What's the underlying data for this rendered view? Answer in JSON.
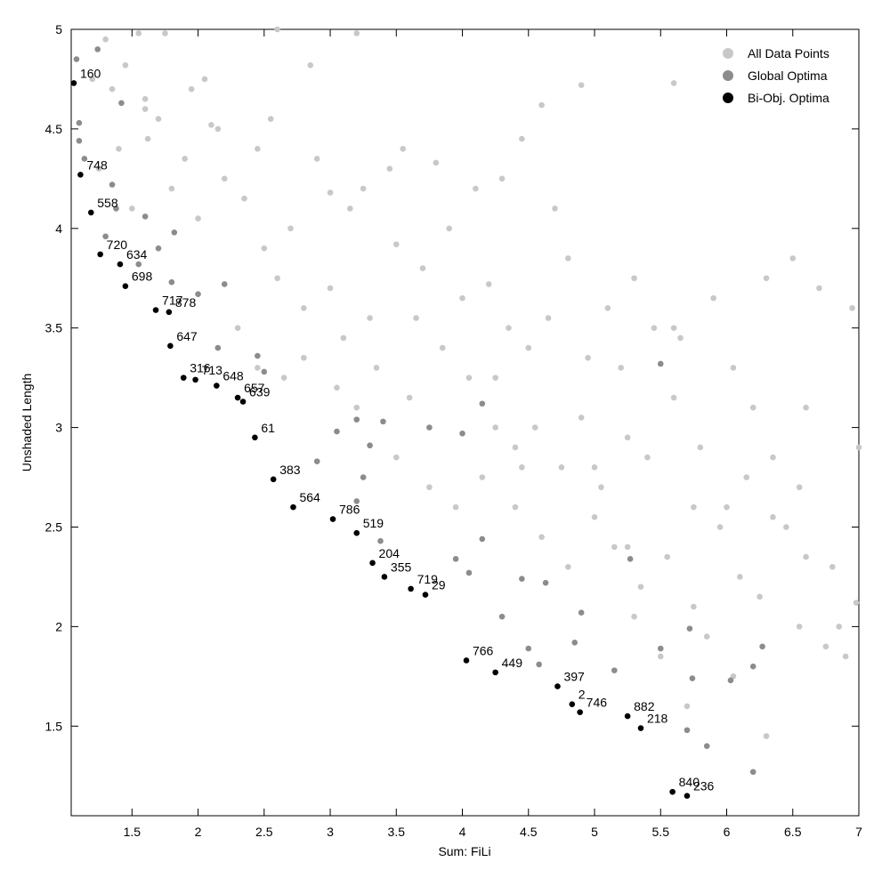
{
  "chart_data": {
    "type": "scatter",
    "x_label": "Sum: FiLi",
    "y_label": "Unshaded Length",
    "xlim": [
      1.04,
      7
    ],
    "ylim": [
      1.05,
      5
    ],
    "xticks": [
      1.5,
      2,
      2.5,
      3,
      3.5,
      4,
      4.5,
      5,
      5.5,
      6,
      6.5,
      7
    ],
    "yticks": [
      1.5,
      2,
      2.5,
      3,
      3.5,
      4,
      4.5,
      5
    ],
    "legend_position": "upper right",
    "series": [
      {
        "name": "All Data Points",
        "color": "#c8c8c8",
        "x": [
          1.2,
          1.3,
          1.35,
          1.45,
          1.55,
          1.6,
          1.7,
          1.75,
          1.95,
          2.05,
          2.15,
          2.6,
          2.85,
          3.2,
          4.6,
          4.9,
          5.6,
          1.25,
          1.4,
          1.5,
          1.62,
          1.8,
          1.9,
          2.0,
          2.2,
          2.35,
          2.45,
          2.7,
          2.9,
          3.0,
          3.25,
          3.45,
          3.55,
          3.8,
          4.1,
          4.3,
          4.45,
          2.5,
          2.6,
          2.8,
          3.0,
          3.1,
          3.3,
          3.5,
          3.7,
          3.9,
          4.0,
          4.2,
          4.35,
          4.7,
          4.8,
          5.1,
          5.3,
          2.3,
          2.45,
          2.65,
          2.8,
          3.05,
          3.2,
          3.35,
          3.6,
          3.85,
          4.05,
          4.25,
          4.5,
          4.65,
          4.95,
          5.2,
          5.45,
          5.65,
          5.9,
          6.05,
          6.3,
          6.5,
          6.7,
          6.95,
          3.5,
          3.75,
          3.95,
          4.15,
          4.4,
          4.55,
          4.75,
          4.9,
          5.05,
          5.25,
          5.4,
          5.6,
          5.8,
          6.0,
          6.15,
          6.35,
          6.55,
          6.8,
          7.0,
          4.4,
          4.6,
          4.8,
          5.0,
          5.15,
          5.35,
          5.55,
          5.75,
          5.95,
          6.1,
          6.25,
          6.45,
          6.6,
          6.85,
          6.98,
          5.3,
          5.5,
          5.7,
          5.85,
          6.05,
          6.3,
          6.55,
          6.75,
          6.9,
          1.6,
          2.1,
          2.55,
          3.15,
          3.65,
          4.25,
          5.0,
          5.6,
          6.2,
          6.6,
          4.45,
          5.25,
          5.75,
          6.35
        ],
        "y": [
          4.75,
          4.95,
          4.7,
          4.82,
          4.98,
          4.6,
          4.55,
          4.98,
          4.7,
          4.75,
          4.5,
          5.0,
          4.82,
          4.98,
          4.62,
          4.72,
          4.73,
          4.3,
          4.4,
          4.1,
          4.45,
          4.2,
          4.35,
          4.05,
          4.25,
          4.15,
          4.4,
          4.0,
          4.35,
          4.18,
          4.2,
          4.3,
          4.4,
          4.33,
          4.2,
          4.25,
          4.45,
          3.9,
          3.75,
          3.6,
          3.7,
          3.45,
          3.55,
          3.92,
          3.8,
          4.0,
          3.65,
          3.72,
          3.5,
          4.1,
          3.85,
          3.6,
          3.75,
          3.5,
          3.3,
          3.25,
          3.35,
          3.2,
          3.1,
          3.3,
          3.15,
          3.4,
          3.25,
          3.0,
          3.4,
          3.55,
          3.35,
          3.3,
          3.5,
          3.45,
          3.65,
          3.3,
          3.75,
          3.85,
          3.7,
          3.6,
          2.85,
          2.7,
          2.6,
          2.75,
          2.9,
          3.0,
          2.8,
          3.05,
          2.7,
          2.95,
          2.85,
          3.15,
          2.9,
          2.6,
          2.75,
          2.55,
          2.7,
          2.3,
          2.9,
          2.6,
          2.45,
          2.3,
          2.55,
          2.4,
          2.2,
          2.35,
          2.1,
          2.5,
          2.25,
          2.15,
          2.5,
          2.35,
          2.0,
          2.12,
          2.05,
          1.85,
          1.6,
          1.95,
          1.75,
          1.45,
          2.0,
          1.9,
          1.85,
          4.65,
          4.52,
          4.55,
          4.1,
          3.55,
          3.25,
          2.8,
          3.5,
          3.1,
          3.1,
          2.8,
          2.4,
          2.6,
          2.85
        ]
      },
      {
        "name": "Global Optima",
        "color": "#8c8c8c",
        "x": [
          1.08,
          1.1,
          1.1,
          1.14,
          1.24,
          1.35,
          1.38,
          1.42,
          1.3,
          1.6,
          1.7,
          1.55,
          1.82,
          1.8,
          2.0,
          2.2,
          2.15,
          2.45,
          2.5,
          2.9,
          3.05,
          3.2,
          3.25,
          3.2,
          3.3,
          3.4,
          3.38,
          3.75,
          4.0,
          3.95,
          4.05,
          4.15,
          4.15,
          4.3,
          4.45,
          4.5,
          4.58,
          4.63,
          4.85,
          4.9,
          5.15,
          5.27,
          5.5,
          5.5,
          5.72,
          5.74,
          5.7,
          5.85,
          6.03,
          6.2,
          6.27,
          6.2
        ],
        "y": [
          4.85,
          4.53,
          4.44,
          4.35,
          4.9,
          4.22,
          4.1,
          4.63,
          3.96,
          4.06,
          3.9,
          3.82,
          3.98,
          3.73,
          3.67,
          3.72,
          3.4,
          3.36,
          3.28,
          2.83,
          2.98,
          3.04,
          2.75,
          2.63,
          2.91,
          3.03,
          2.43,
          3.0,
          2.97,
          2.34,
          2.27,
          3.12,
          2.44,
          2.05,
          2.24,
          1.89,
          1.81,
          2.22,
          1.92,
          2.07,
          1.78,
          2.34,
          3.32,
          1.89,
          1.99,
          1.74,
          1.48,
          1.4,
          1.73,
          1.8,
          1.9,
          1.27
        ]
      },
      {
        "name": "Bi-Obj. Optima",
        "color": "#000000",
        "x": [
          1.06,
          1.11,
          1.19,
          1.26,
          1.41,
          1.45,
          1.68,
          1.78,
          1.79,
          1.89,
          1.98,
          2.14,
          2.3,
          2.34,
          2.43,
          2.57,
          2.72,
          3.02,
          3.2,
          3.32,
          3.41,
          3.61,
          3.72,
          4.03,
          4.25,
          4.72,
          4.83,
          4.89,
          5.25,
          5.35,
          5.59,
          5.7
        ],
        "y": [
          4.73,
          4.27,
          4.08,
          3.87,
          3.82,
          3.71,
          3.59,
          3.58,
          3.41,
          3.25,
          3.24,
          3.21,
          3.15,
          3.13,
          2.95,
          2.74,
          2.6,
          2.54,
          2.47,
          2.32,
          2.25,
          2.19,
          2.16,
          1.83,
          1.77,
          1.7,
          1.61,
          1.57,
          1.55,
          1.49,
          1.17,
          1.15
        ],
        "point_labels": [
          "160",
          "748",
          "558",
          "720",
          "634",
          "698",
          "717",
          "878",
          "647",
          "316",
          "713",
          "648",
          "657",
          "639",
          "61",
          "383",
          "564",
          "786",
          "519",
          "204",
          "355",
          "719",
          "29",
          "766",
          "449",
          "397",
          "2",
          "746",
          "882",
          "218",
          "840",
          "236"
        ]
      }
    ]
  }
}
